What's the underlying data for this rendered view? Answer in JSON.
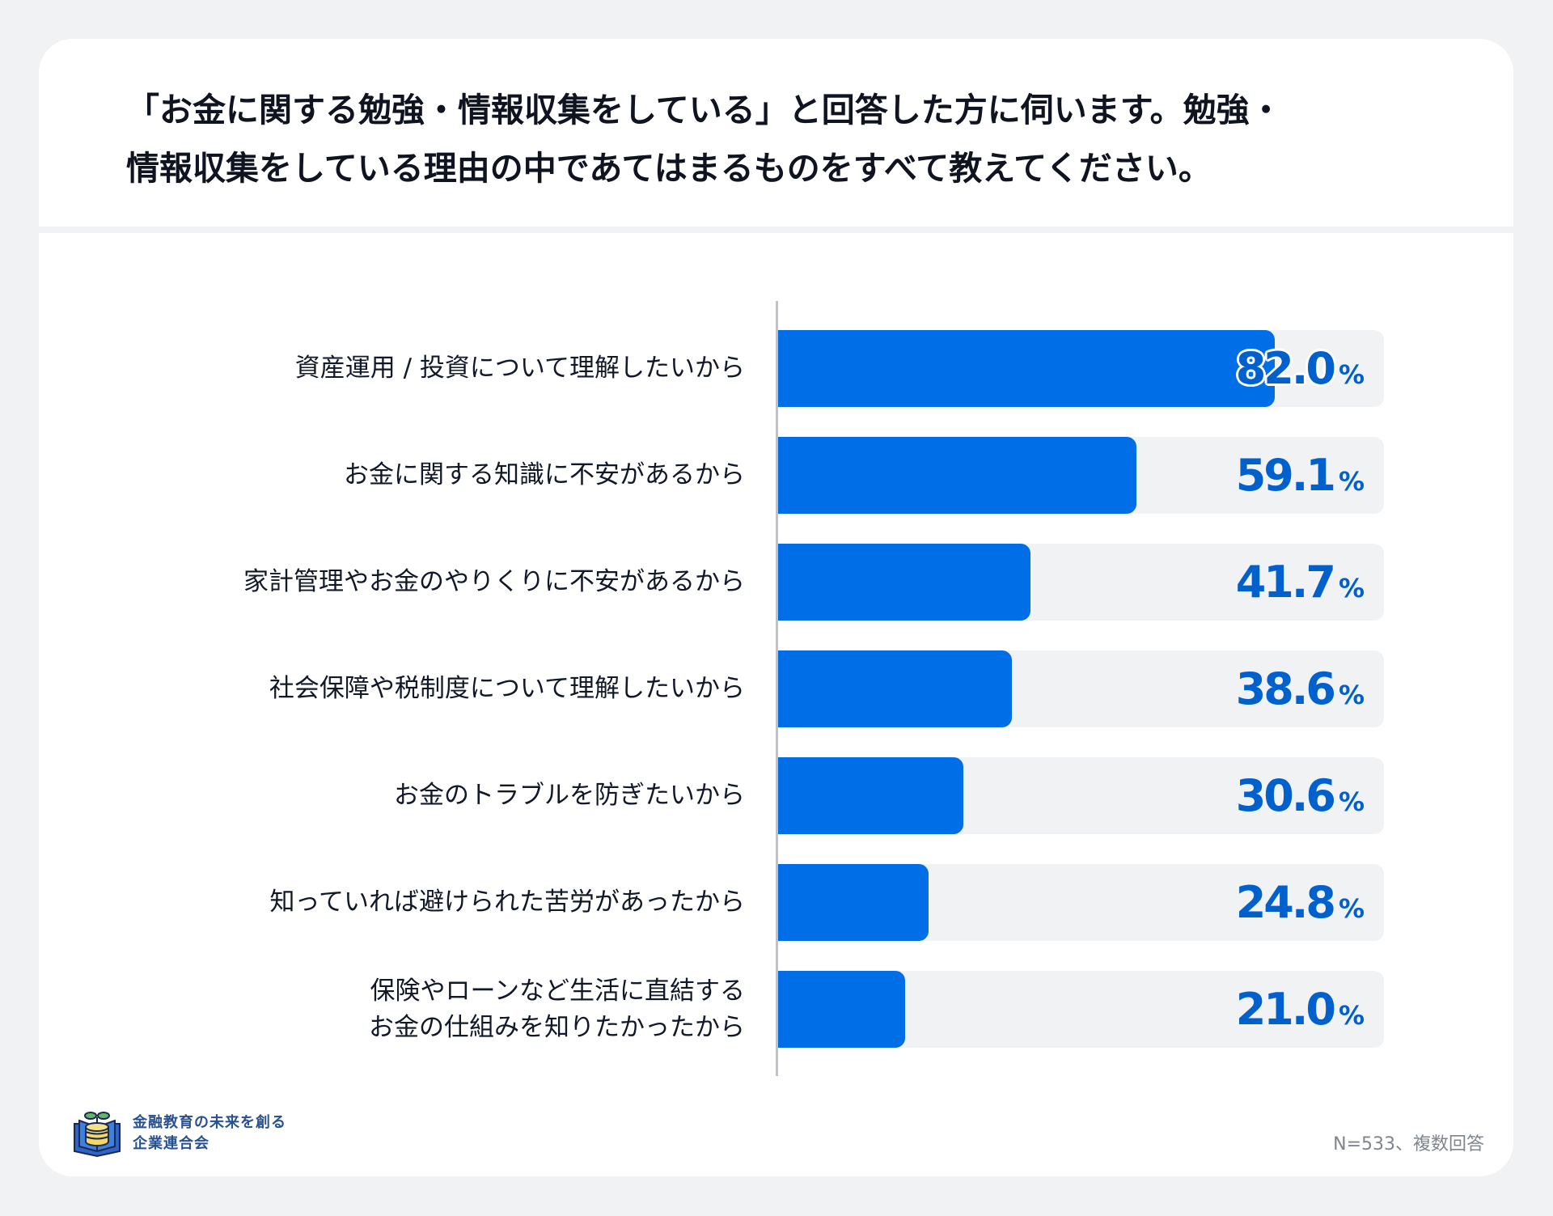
{
  "title": {
    "line1": "「お金に関する勉強・情報収集をしている」と回答した方に伺います。勉強・",
    "line2": "情報収集をしている理由の中であてはまるものをすべて教えてください。"
  },
  "chart_data": {
    "type": "bar",
    "orientation": "horizontal",
    "title": "「お金に関する勉強・情報収集をしている」と回答した方に伺います。勉強・情報収集をしている理由の中であてはまるものをすべて教えてください。",
    "categories": [
      [
        "資産運用 / 投資について理解したいから"
      ],
      [
        "お金に関する知識に不安があるから"
      ],
      [
        "家計管理やお金のやりくりに不安があるから"
      ],
      [
        "社会保障や税制度について理解したいから"
      ],
      [
        "お金のトラブルを防ぎたいから"
      ],
      [
        "知っていれば避けられた苦労があったから"
      ],
      [
        "保険やローンなど生活に直結する",
        "お金の仕組みを知りたかったから"
      ]
    ],
    "values": [
      82.0,
      59.1,
      41.7,
      38.6,
      30.6,
      24.8,
      21.0
    ],
    "value_labels": [
      "82.0",
      "59.1",
      "41.7",
      "38.6",
      "30.6",
      "24.8",
      "21.0"
    ],
    "unit": "%",
    "xlim": [
      0,
      100
    ],
    "grid": false,
    "colors": {
      "bar": "#006ee6",
      "track": "#f1f2f4",
      "value_text": "#0060cc"
    }
  },
  "footer": {
    "logo_text_line1": "金融教育の未来を創る",
    "logo_text_line2": "企業連合会",
    "note": "N=533、複数回答"
  }
}
